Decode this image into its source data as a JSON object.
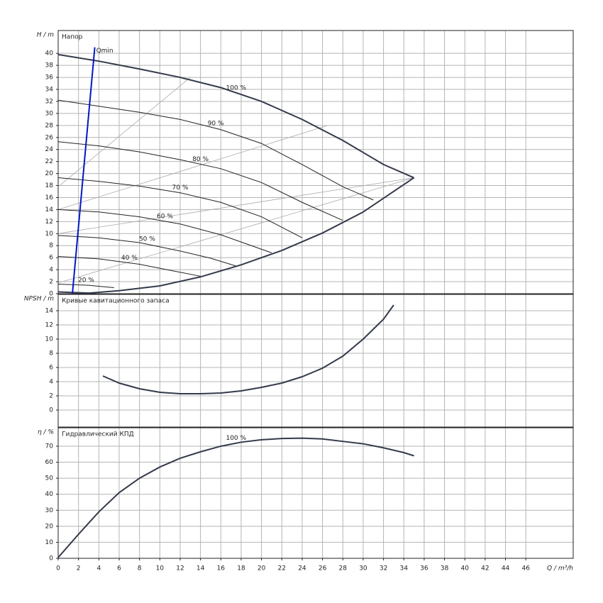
{
  "chart_data": [
    {
      "type": "line",
      "ylabel": "H / m",
      "title": "Напор",
      "xlim": [
        0,
        50.66
      ],
      "xticks": [
        0,
        2,
        4,
        6,
        8,
        10,
        12,
        14,
        16,
        18,
        20,
        22,
        24,
        26,
        28,
        30,
        32,
        34,
        36,
        38,
        40,
        42,
        44,
        46
      ],
      "ylim": [
        0,
        43.8
      ],
      "yticks": [
        0,
        2,
        4,
        6,
        8,
        10,
        12,
        14,
        16,
        18,
        20,
        22,
        24,
        26,
        28,
        30,
        32,
        34,
        36,
        38,
        40
      ],
      "grid": true,
      "series": [
        {
          "name": "100 %",
          "color": "#333a4a",
          "x": [
            0,
            4,
            8,
            12,
            16,
            20,
            24,
            28,
            32,
            35
          ],
          "values": [
            39.8,
            38.7,
            37.4,
            36,
            34.3,
            32,
            29,
            25.5,
            21.5,
            19.3
          ]
        },
        {
          "name": "90 %",
          "color": "#222222",
          "x": [
            0,
            4,
            8,
            12,
            16,
            20,
            24,
            28,
            31
          ],
          "values": [
            32.2,
            31.2,
            30.2,
            29,
            27.3,
            25,
            21.5,
            17.8,
            15.6
          ]
        },
        {
          "name": "80 %",
          "color": "#222222",
          "x": [
            0,
            4,
            8,
            12,
            16,
            20,
            24,
            28
          ],
          "values": [
            25.3,
            24.6,
            23.6,
            22.3,
            20.8,
            18.5,
            15.2,
            12.2
          ]
        },
        {
          "name": "70 %",
          "color": "#222222",
          "x": [
            0,
            4,
            8,
            12,
            16,
            20,
            24
          ],
          "values": [
            19.3,
            18.7,
            17.9,
            16.8,
            15.2,
            12.8,
            9.3
          ]
        },
        {
          "name": "60 %",
          "color": "#222222",
          "x": [
            0,
            4,
            8,
            12,
            16,
            21
          ],
          "values": [
            14,
            13.6,
            12.8,
            11.6,
            9.8,
            6.8
          ]
        },
        {
          "name": "50 %",
          "color": "#222222",
          "x": [
            0,
            4,
            8,
            12,
            15,
            17.5
          ],
          "values": [
            9.7,
            9.3,
            8.5,
            7.1,
            5.9,
            4.6
          ]
        },
        {
          "name": "40 %",
          "color": "#222222",
          "x": [
            0,
            4,
            8,
            11,
            14
          ],
          "values": [
            6.2,
            5.8,
            4.9,
            3.9,
            2.9
          ]
        },
        {
          "name": "20 %",
          "color": "#222222",
          "x": [
            0,
            3,
            5.5
          ],
          "values": [
            1.6,
            1.4,
            1
          ]
        },
        {
          "color": "#333a4a",
          "x": [
            0,
            3,
            6,
            10,
            14,
            18,
            22,
            26,
            30,
            35
          ],
          "values": [
            0.3,
            0.1,
            0.5,
            1.3,
            2.8,
            4.8,
            7.2,
            10.1,
            13.6,
            19.3
          ]
        }
      ],
      "guide_lines": [
        {
          "color": "#aaaaaa",
          "x": [
            0,
            13
          ],
          "values": [
            17.8,
            36
          ]
        },
        {
          "color": "#aaaaaa",
          "x": [
            0,
            26.5
          ],
          "values": [
            14,
            28
          ]
        },
        {
          "color": "#aaaaaa",
          "x": [
            0,
            35
          ],
          "values": [
            10,
            19.3
          ]
        },
        {
          "color": "#aaaaaa",
          "x": [
            0,
            35
          ],
          "values": [
            1.8,
            19.3
          ]
        }
      ],
      "qmin": {
        "label": "Qmin",
        "color": "#0018c8",
        "x": [
          1.4,
          3.6
        ],
        "values": [
          0,
          41
        ]
      }
    },
    {
      "type": "line",
      "ylabel": "NPSH / m",
      "title": "Кривые кавитационного запаса",
      "xlim": [
        0,
        50.66
      ],
      "xticks": [
        0,
        2,
        4,
        6,
        8,
        10,
        12,
        14,
        16,
        18,
        20,
        22,
        24,
        26,
        28,
        30,
        32,
        34,
        36,
        38,
        40,
        42,
        44,
        46
      ],
      "ylim": [
        -2.4,
        16.3
      ],
      "yticks": [
        0,
        2,
        4,
        6,
        8,
        10,
        12,
        14
      ],
      "grid": true,
      "series": [
        {
          "color": "#333a4a",
          "x": [
            4.4,
            6,
            8,
            10,
            12,
            14,
            16,
            18,
            20,
            22,
            24,
            26,
            28,
            30,
            32,
            33
          ],
          "values": [
            4.8,
            3.8,
            3,
            2.5,
            2.3,
            2.3,
            2.4,
            2.7,
            3.2,
            3.8,
            4.7,
            5.9,
            7.6,
            10,
            12.8,
            14.8
          ]
        }
      ]
    },
    {
      "type": "line",
      "ylabel": "η / %",
      "title": "Гидравлический КПД",
      "xlabel": "Q / m³/h",
      "xlim": [
        0,
        50.66
      ],
      "xticks": [
        0,
        2,
        4,
        6,
        8,
        10,
        12,
        14,
        16,
        18,
        20,
        22,
        24,
        26,
        28,
        30,
        32,
        34,
        36,
        38,
        40,
        42,
        44,
        46
      ],
      "ylim": [
        0,
        81.5
      ],
      "yticks": [
        0,
        10,
        20,
        30,
        40,
        50,
        60,
        70
      ],
      "grid": true,
      "series": [
        {
          "name": "100 %",
          "color": "#333a4a",
          "x": [
            0,
            2,
            4,
            6,
            8,
            10,
            12,
            14,
            16,
            18,
            20,
            22,
            24,
            26,
            28,
            30,
            32,
            34,
            35
          ],
          "values": [
            0.5,
            15,
            29,
            41,
            50,
            57,
            62.5,
            66.5,
            70,
            72.5,
            74,
            74.8,
            75,
            74.5,
            73,
            71.5,
            69,
            66,
            64
          ]
        }
      ]
    }
  ]
}
